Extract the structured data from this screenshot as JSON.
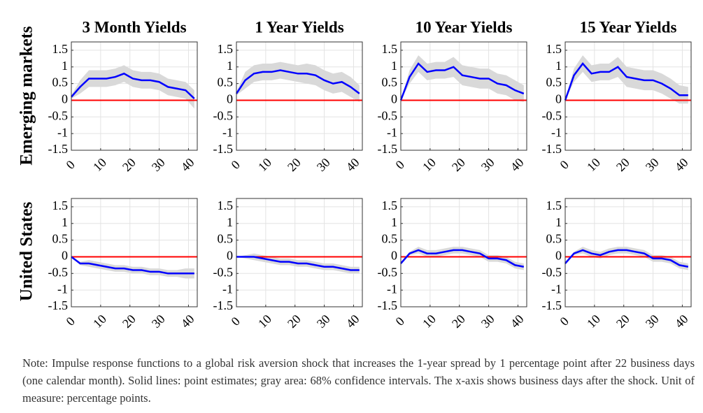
{
  "row_labels": [
    "Emerging markets",
    "United States"
  ],
  "note": "Note: Impulse response functions to a global risk aversion shock that increases the 1-year spread by 1 percentage point after 22 business days (one calendar month). Solid lines: point estimates; gray area: 68% confidence intervals. The x-axis shows business days after the shock. Unit of measure: percentage points.",
  "chart_data": [
    {
      "type": "line",
      "title": "3 Month Yields",
      "color": "#0000ff",
      "band_color": "#d9d9d9",
      "grid": true,
      "reference_line": {
        "value": 0,
        "color": "#ff0000"
      },
      "x": [
        0,
        3,
        6,
        9,
        12,
        15,
        18,
        21,
        24,
        27,
        30,
        33,
        36,
        39,
        42
      ],
      "values": [
        0.1,
        0.4,
        0.65,
        0.65,
        0.65,
        0.7,
        0.8,
        0.65,
        0.6,
        0.6,
        0.55,
        0.4,
        0.35,
        0.3,
        0.05
      ],
      "band": {
        "lower": [
          0.05,
          0.2,
          0.4,
          0.4,
          0.4,
          0.45,
          0.55,
          0.4,
          0.35,
          0.35,
          0.3,
          0.15,
          0.1,
          0.05,
          -0.25
        ],
        "upper": [
          0.15,
          0.6,
          0.9,
          0.9,
          0.9,
          0.95,
          1.05,
          0.9,
          0.85,
          0.85,
          0.8,
          0.65,
          0.6,
          0.55,
          0.3
        ]
      },
      "xlim": [
        0,
        43
      ],
      "xticks": [
        0,
        10,
        20,
        30,
        40
      ],
      "ylim": [
        -1.5,
        1.75
      ],
      "yticks": [
        1.5,
        1,
        0.5,
        0,
        -0.5,
        -1,
        -1.5
      ]
    },
    {
      "type": "line",
      "title": "1 Year Yields",
      "color": "#0000ff",
      "band_color": "#d9d9d9",
      "grid": true,
      "reference_line": {
        "value": 0,
        "color": "#ff0000"
      },
      "x": [
        0,
        3,
        6,
        9,
        12,
        15,
        18,
        21,
        24,
        27,
        30,
        33,
        36,
        39,
        42
      ],
      "values": [
        0.2,
        0.6,
        0.8,
        0.85,
        0.85,
        0.9,
        0.85,
        0.8,
        0.8,
        0.75,
        0.6,
        0.5,
        0.55,
        0.4,
        0.2
      ],
      "band": {
        "lower": [
          0.15,
          0.35,
          0.55,
          0.6,
          0.6,
          0.65,
          0.6,
          0.55,
          0.5,
          0.45,
          0.3,
          0.2,
          0.25,
          0.1,
          -0.05
        ],
        "upper": [
          0.25,
          0.85,
          1.05,
          1.1,
          1.1,
          1.15,
          1.1,
          1.05,
          1.1,
          1.05,
          0.9,
          0.8,
          0.85,
          0.7,
          0.45
        ]
      },
      "xlim": [
        0,
        43
      ],
      "xticks": [
        0,
        10,
        20,
        30,
        40
      ],
      "ylim": [
        -1.5,
        1.75
      ],
      "yticks": [
        1.5,
        1,
        0.5,
        0,
        -0.5,
        -1,
        -1.5
      ]
    },
    {
      "type": "line",
      "title": "10 Year Yields",
      "color": "#0000ff",
      "band_color": "#d9d9d9",
      "grid": true,
      "reference_line": {
        "value": 0,
        "color": "#ff0000"
      },
      "x": [
        0,
        3,
        6,
        9,
        12,
        15,
        18,
        21,
        24,
        27,
        30,
        33,
        36,
        39,
        42
      ],
      "values": [
        0,
        0.7,
        1.1,
        0.85,
        0.9,
        0.9,
        1.0,
        0.75,
        0.7,
        0.65,
        0.65,
        0.5,
        0.45,
        0.3,
        0.2
      ],
      "band": {
        "lower": [
          0,
          0.5,
          0.85,
          0.6,
          0.65,
          0.65,
          0.7,
          0.45,
          0.4,
          0.35,
          0.35,
          0.2,
          0.15,
          0,
          -0.05
        ],
        "upper": [
          0,
          0.9,
          1.35,
          1.1,
          1.15,
          1.15,
          1.3,
          1.05,
          1.0,
          0.95,
          0.95,
          0.8,
          0.75,
          0.6,
          0.45
        ]
      },
      "xlim": [
        0,
        43
      ],
      "xticks": [
        0,
        10,
        20,
        30,
        40
      ],
      "ylim": [
        -1.5,
        1.75
      ],
      "yticks": [
        1.5,
        1,
        0.5,
        0,
        -0.5,
        -1,
        -1.5
      ]
    },
    {
      "type": "line",
      "title": "15 Year Yields",
      "color": "#0000ff",
      "band_color": "#d9d9d9",
      "grid": true,
      "reference_line": {
        "value": 0,
        "color": "#ff0000"
      },
      "x": [
        0,
        3,
        6,
        9,
        12,
        15,
        18,
        21,
        24,
        27,
        30,
        33,
        36,
        39,
        42
      ],
      "values": [
        0,
        0.75,
        1.1,
        0.8,
        0.85,
        0.85,
        1.0,
        0.7,
        0.65,
        0.6,
        0.6,
        0.5,
        0.35,
        0.15,
        0.15
      ],
      "band": {
        "lower": [
          0,
          0.55,
          0.85,
          0.55,
          0.6,
          0.6,
          0.7,
          0.4,
          0.35,
          0.3,
          0.3,
          0.2,
          0.05,
          -0.1,
          -0.1
        ],
        "upper": [
          0,
          0.95,
          1.35,
          1.05,
          1.1,
          1.1,
          1.3,
          1.0,
          0.95,
          0.9,
          0.9,
          0.8,
          0.65,
          0.45,
          0.4
        ]
      },
      "xlim": [
        0,
        43
      ],
      "xticks": [
        0,
        10,
        20,
        30,
        40
      ],
      "ylim": [
        -1.5,
        1.75
      ],
      "yticks": [
        1.5,
        1,
        0.5,
        0,
        -0.5,
        -1,
        -1.5
      ]
    },
    {
      "type": "line",
      "color": "#0000ff",
      "band_color": "#d9d9d9",
      "grid": true,
      "reference_line": {
        "value": 0,
        "color": "#ff0000"
      },
      "x": [
        0,
        3,
        6,
        9,
        12,
        15,
        18,
        21,
        24,
        27,
        30,
        33,
        36,
        39,
        42
      ],
      "values": [
        0,
        -0.2,
        -0.2,
        -0.25,
        -0.3,
        -0.35,
        -0.35,
        -0.4,
        -0.4,
        -0.45,
        -0.45,
        -0.5,
        -0.5,
        -0.5,
        -0.5
      ],
      "band": {
        "lower": [
          0,
          -0.25,
          -0.3,
          -0.35,
          -0.4,
          -0.45,
          -0.45,
          -0.5,
          -0.5,
          -0.55,
          -0.55,
          -0.6,
          -0.6,
          -0.65,
          -0.65
        ],
        "upper": [
          0,
          -0.15,
          -0.1,
          -0.15,
          -0.2,
          -0.25,
          -0.25,
          -0.3,
          -0.3,
          -0.35,
          -0.35,
          -0.4,
          -0.4,
          -0.35,
          -0.35
        ]
      },
      "xlim": [
        0,
        43
      ],
      "xticks": [
        0,
        10,
        20,
        30,
        40
      ],
      "ylim": [
        -1.5,
        1.75
      ],
      "yticks": [
        1.5,
        1,
        0.5,
        0,
        -0.5,
        -1,
        -1.5
      ]
    },
    {
      "type": "line",
      "color": "#0000ff",
      "band_color": "#d9d9d9",
      "grid": true,
      "reference_line": {
        "value": 0,
        "color": "#ff0000"
      },
      "x": [
        0,
        3,
        6,
        9,
        12,
        15,
        18,
        21,
        24,
        27,
        30,
        33,
        36,
        39,
        42
      ],
      "values": [
        0,
        0,
        0,
        -0.05,
        -0.1,
        -0.15,
        -0.15,
        -0.2,
        -0.2,
        -0.25,
        -0.3,
        -0.3,
        -0.35,
        -0.4,
        -0.4
      ],
      "band": {
        "lower": [
          0,
          -0.05,
          -0.1,
          -0.15,
          -0.2,
          -0.25,
          -0.25,
          -0.3,
          -0.3,
          -0.35,
          -0.4,
          -0.4,
          -0.45,
          -0.5,
          -0.5
        ],
        "upper": [
          0,
          0.05,
          0.1,
          0.05,
          0,
          -0.05,
          -0.05,
          -0.1,
          -0.1,
          -0.15,
          -0.2,
          -0.2,
          -0.25,
          -0.3,
          -0.3
        ]
      },
      "xlim": [
        0,
        43
      ],
      "xticks": [
        0,
        10,
        20,
        30,
        40
      ],
      "ylim": [
        -1.5,
        1.75
      ],
      "yticks": [
        1.5,
        1,
        0.5,
        0,
        -0.5,
        -1,
        -1.5
      ]
    },
    {
      "type": "line",
      "color": "#0000ff",
      "band_color": "#d9d9d9",
      "grid": true,
      "reference_line": {
        "value": 0,
        "color": "#ff0000"
      },
      "x": [
        0,
        3,
        6,
        9,
        12,
        15,
        18,
        21,
        24,
        27,
        30,
        33,
        36,
        39,
        42
      ],
      "values": [
        -0.2,
        0.1,
        0.2,
        0.1,
        0.1,
        0.15,
        0.2,
        0.2,
        0.15,
        0.1,
        -0.05,
        -0.05,
        -0.1,
        -0.25,
        -0.3
      ],
      "band": {
        "lower": [
          -0.2,
          0.05,
          0.1,
          0,
          0,
          0.05,
          0.1,
          0.1,
          0.05,
          0,
          -0.15,
          -0.15,
          -0.2,
          -0.35,
          -0.4
        ],
        "upper": [
          -0.2,
          0.15,
          0.3,
          0.2,
          0.2,
          0.25,
          0.3,
          0.3,
          0.25,
          0.2,
          0.05,
          0.05,
          0,
          -0.15,
          -0.2
        ]
      },
      "xlim": [
        0,
        43
      ],
      "xticks": [
        0,
        10,
        20,
        30,
        40
      ],
      "ylim": [
        -1.5,
        1.75
      ],
      "yticks": [
        1.5,
        1,
        0.5,
        0,
        -0.5,
        -1,
        -1.5
      ]
    },
    {
      "type": "line",
      "color": "#0000ff",
      "band_color": "#d9d9d9",
      "grid": true,
      "reference_line": {
        "value": 0,
        "color": "#ff0000"
      },
      "x": [
        0,
        3,
        6,
        9,
        12,
        15,
        18,
        21,
        24,
        27,
        30,
        33,
        36,
        39,
        42
      ],
      "values": [
        -0.2,
        0.1,
        0.2,
        0.1,
        0.05,
        0.15,
        0.2,
        0.2,
        0.15,
        0.1,
        -0.05,
        -0.05,
        -0.1,
        -0.25,
        -0.3
      ],
      "band": {
        "lower": [
          -0.2,
          0.05,
          0.1,
          0,
          -0.05,
          0.05,
          0.1,
          0.1,
          0.05,
          0,
          -0.15,
          -0.15,
          -0.2,
          -0.35,
          -0.4
        ],
        "upper": [
          -0.2,
          0.15,
          0.3,
          0.2,
          0.15,
          0.25,
          0.3,
          0.3,
          0.25,
          0.2,
          0.05,
          0.05,
          0,
          -0.15,
          -0.2
        ]
      },
      "xlim": [
        0,
        43
      ],
      "xticks": [
        0,
        10,
        20,
        30,
        40
      ],
      "ylim": [
        -1.5,
        1.75
      ],
      "yticks": [
        1.5,
        1,
        0.5,
        0,
        -0.5,
        -1,
        -1.5
      ]
    }
  ]
}
